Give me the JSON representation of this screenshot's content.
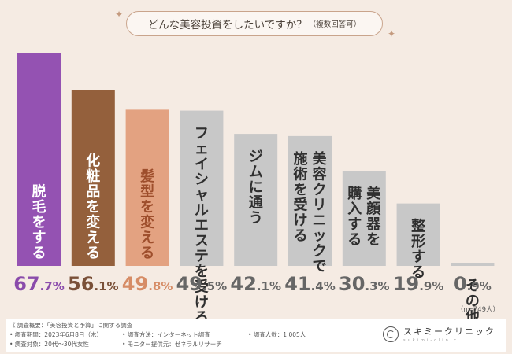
{
  "question": {
    "main": "どんな美容投資をしたいですか？",
    "note": "（複数回答可）"
  },
  "sample_size": "（n=749人）",
  "chart_data": {
    "type": "bar",
    "title": "どんな美容投資をしたいですか？（複数回答可）",
    "categories": [
      "脱毛をする",
      "化粧品を変える",
      "髪型を変える",
      "フェイシャルエステを受ける",
      "ジムに通う",
      "美容クリニックで施術を受ける",
      "美顔器を購入する",
      "整形する",
      "その他"
    ],
    "label_lines": [
      [
        "脱毛をする"
      ],
      [
        "化粧品を変える"
      ],
      [
        "髪型を変える"
      ],
      [
        "フェイシャルエステを受ける"
      ],
      [
        "ジムに通う"
      ],
      [
        "美容クリニックで",
        "施術を受ける"
      ],
      [
        "美顔器を",
        "購入する"
      ],
      [
        "整形する"
      ],
      [
        "その他"
      ]
    ],
    "values": [
      67.7,
      56.1,
      49.8,
      49.5,
      42.1,
      41.4,
      30.3,
      19.9,
      0.9
    ],
    "value_labels": [
      {
        "int": "67",
        "dec": ".7%"
      },
      {
        "int": "56",
        "dec": ".1%"
      },
      {
        "int": "49",
        "dec": ".8%"
      },
      {
        "int": "49",
        "dec": ".5%"
      },
      {
        "int": "42",
        "dec": ".1%"
      },
      {
        "int": "41",
        "dec": ".4%"
      },
      {
        "int": "30",
        "dec": ".3%"
      },
      {
        "int": "19",
        "dec": ".9%"
      },
      {
        "int": "0",
        "dec": ".9%"
      }
    ],
    "unit": "%",
    "ylim": [
      0,
      70
    ],
    "bar_colors": [
      "#9452b2",
      "#94603c",
      "#e3a281",
      "#c8c8c8",
      "#c8c8c8",
      "#c8c8c8",
      "#c8c8c8",
      "#c8c8c8",
      "#c8c8c8"
    ],
    "label_colors": [
      "#ffffff",
      "#ffffff",
      "#9e4e2c",
      "#2f2f2f",
      "#2f2f2f",
      "#2f2f2f",
      "#2f2f2f",
      "#2f2f2f",
      "#2f2f2f"
    ],
    "value_colors": [
      "#8a4bab",
      "#7a5038",
      "#d68c66",
      "#666666",
      "#666666",
      "#666666",
      "#666666",
      "#666666",
      "#666666"
    ]
  },
  "footer": {
    "survey": "《 調査概要：「美容投資と予算」に関する調査",
    "period": "• 調査期間：2023年6月8日（木）",
    "method": "• 調査方法：インターネット調査",
    "count": "• 調査人数：1,005人",
    "target": "• 調査対象：20代〜30代女性",
    "provider": "• モニター提供元：ゼネラルリサーチ"
  },
  "logo": {
    "name": "スキミークリニック",
    "sub": "sukimi-clinic"
  },
  "colors": {
    "background": "#f5ebe3",
    "accent": "#c9a48c"
  }
}
